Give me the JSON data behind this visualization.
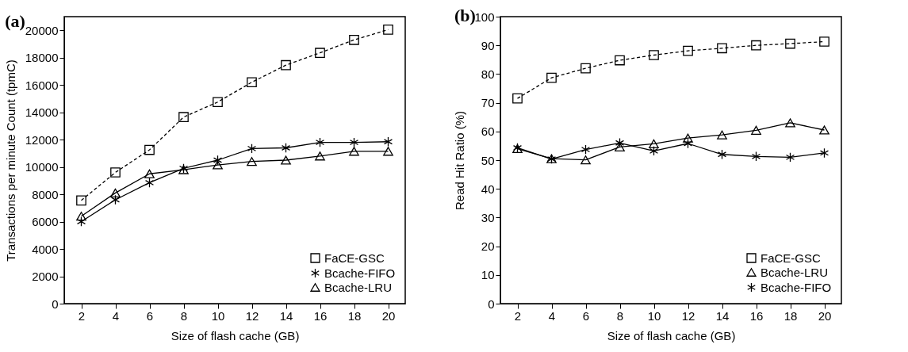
{
  "chart_data": [
    {
      "type": "line",
      "title": "(a)",
      "xlabel": "Size of flash cache (GB)",
      "ylabel": "Transactions per minute Count (tpmC)",
      "x": [
        2,
        4,
        6,
        8,
        10,
        12,
        14,
        16,
        18,
        20
      ],
      "xlim": [
        1,
        21
      ],
      "xticks": [
        2,
        4,
        6,
        8,
        10,
        12,
        14,
        16,
        18,
        20
      ],
      "ylim": [
        0,
        21000
      ],
      "yticks": [
        0,
        2000,
        4000,
        6000,
        8000,
        10000,
        12000,
        14000,
        16000,
        18000,
        20000
      ],
      "grid": false,
      "legend": "bottom right",
      "series": [
        {
          "name": "FaCE-GSC",
          "color": "#000000",
          "marker": "square",
          "line_style": "dashed",
          "values": [
            7550,
            9600,
            11250,
            13650,
            14750,
            16200,
            17450,
            18350,
            19300,
            20050
          ]
        },
        {
          "name": "Bcache-FIFO",
          "color": "#000000",
          "marker": "cross",
          "line_style": "solid",
          "values": [
            6000,
            7600,
            8850,
            9900,
            10500,
            11350,
            11400,
            11800,
            11800,
            11850
          ]
        },
        {
          "name": "Bcache-LRU",
          "color": "#000000",
          "marker": "triangle",
          "line_style": "solid",
          "values": [
            6400,
            8100,
            9500,
            9800,
            10150,
            10400,
            10500,
            10800,
            11150,
            11150
          ]
        }
      ]
    },
    {
      "type": "line",
      "title": "(b)",
      "xlabel": "Size of flash cache (GB)",
      "ylabel": "Read Hit Ratio (%)",
      "x": [
        2,
        4,
        6,
        8,
        10,
        12,
        14,
        16,
        18,
        20
      ],
      "xlim": [
        1,
        21
      ],
      "xticks": [
        2,
        4,
        6,
        8,
        10,
        12,
        14,
        16,
        18,
        20
      ],
      "ylim": [
        0,
        100
      ],
      "yticks": [
        0,
        10,
        20,
        30,
        40,
        50,
        60,
        70,
        80,
        90,
        100
      ],
      "grid": false,
      "legend": "bottom right",
      "series": [
        {
          "name": "FaCE-GSC",
          "color": "#000000",
          "marker": "square",
          "line_style": "dashed",
          "values": [
            71.5,
            78.7,
            82,
            84.8,
            86.6,
            88.1,
            89,
            90,
            90.6,
            91.3
          ]
        },
        {
          "name": "Bcache-LRU",
          "color": "#000000",
          "marker": "triangle",
          "line_style": "solid",
          "values": [
            54,
            50.5,
            50.1,
            54.6,
            55.7,
            57.7,
            58.8,
            60.4,
            63,
            60.5
          ]
        },
        {
          "name": "Bcache-FIFO",
          "color": "#000000",
          "marker": "cross",
          "line_style": "solid",
          "values": [
            54.3,
            50.4,
            53.7,
            56,
            53.2,
            55.8,
            52,
            51.3,
            51,
            52.5
          ]
        }
      ]
    }
  ]
}
